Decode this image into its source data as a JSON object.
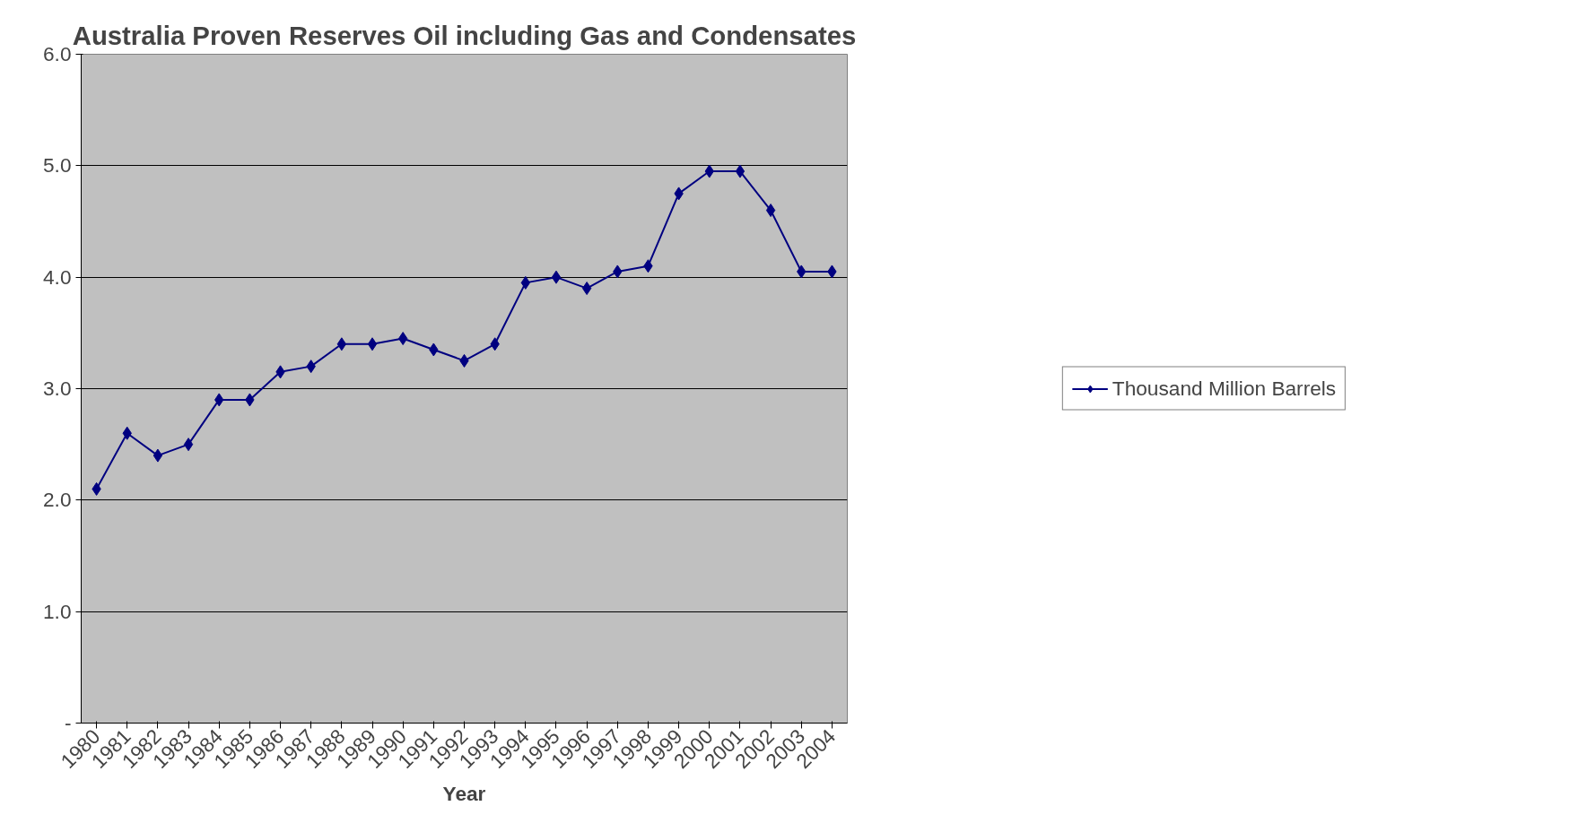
{
  "chart_data": {
    "type": "line",
    "title": "Australia Proven Reserves Oil including Gas and Condensates",
    "xlabel": "Year",
    "categories": [
      "1980",
      "1981",
      "1982",
      "1983",
      "1984",
      "1985",
      "1986",
      "1987",
      "1988",
      "1989",
      "1990",
      "1991",
      "1992",
      "1993",
      "1994",
      "1995",
      "1996",
      "1997",
      "1998",
      "1999",
      "2000",
      "2001",
      "2002",
      "2003",
      "2004"
    ],
    "series": [
      {
        "name": "Thousand Million Barrels",
        "color": "#000080",
        "values": [
          2.1,
          2.6,
          2.4,
          2.5,
          2.9,
          2.9,
          3.15,
          3.2,
          3.4,
          3.4,
          3.45,
          3.35,
          3.25,
          3.4,
          3.95,
          4.0,
          3.9,
          4.05,
          4.1,
          4.75,
          4.95,
          4.95,
          4.6,
          4.05,
          4.05
        ]
      }
    ],
    "ylim": [
      0,
      6
    ],
    "yticks": [
      {
        "value": 0,
        "label": "-"
      },
      {
        "value": 1,
        "label": "1.0"
      },
      {
        "value": 2,
        "label": "2.0"
      },
      {
        "value": 3,
        "label": "3.0"
      },
      {
        "value": 4,
        "label": "4.0"
      },
      {
        "value": 5,
        "label": "5.0"
      },
      {
        "value": 6,
        "label": "6.0"
      }
    ],
    "grid": "y",
    "legend": "right",
    "marker": "diamond",
    "line_style": "solid"
  }
}
